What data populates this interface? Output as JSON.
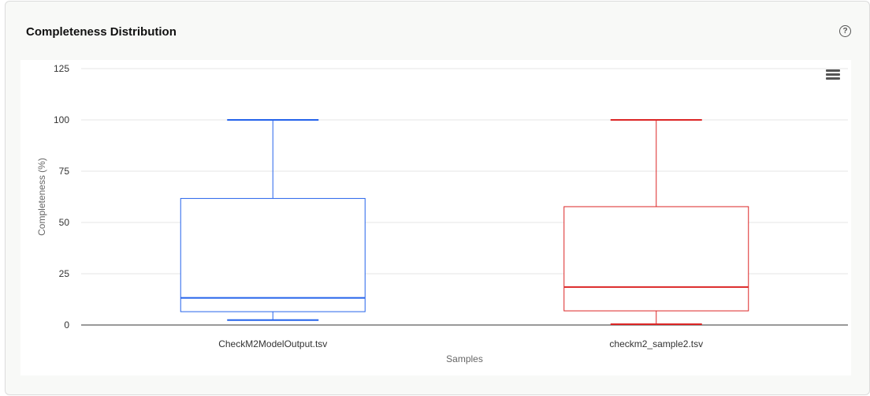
{
  "panel": {
    "title": "Completeness Distribution",
    "help_icon": "question-circle-icon",
    "menu_icon": "hamburger-menu-icon"
  },
  "chart_data": {
    "type": "box",
    "title": "",
    "xlabel": "Samples",
    "ylabel": "Completeness (%)",
    "ylim": [
      0,
      125
    ],
    "yticks": [
      0,
      25,
      50,
      75,
      100,
      125
    ],
    "grid": true,
    "categories": [
      "CheckM2ModelOutput.tsv",
      "checkm2_sample2.tsv"
    ],
    "boxes": [
      {
        "category": "CheckM2ModelOutput.tsv",
        "min": 2.4,
        "q1": 6.5,
        "median": 13.2,
        "q3": 61.7,
        "max": 100,
        "color": "#2563eb"
      },
      {
        "category": "checkm2_sample2.tsv",
        "min": 0.4,
        "q1": 6.9,
        "median": 18.5,
        "q3": 57.7,
        "max": 100,
        "color": "#dc2626"
      }
    ]
  }
}
